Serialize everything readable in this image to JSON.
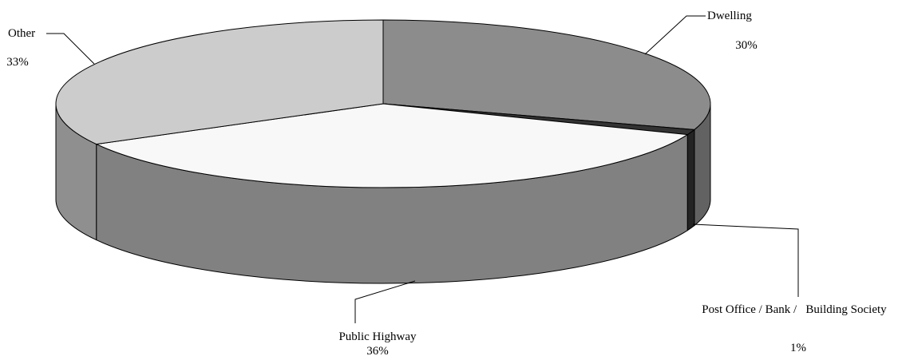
{
  "chart_data": {
    "type": "pie3d",
    "categories": [
      "Dwelling",
      "Post Office / Bank /   Building Society",
      "Public Highway",
      "Other"
    ],
    "values": [
      30,
      1,
      36,
      33
    ],
    "value_labels": [
      "30%",
      "1%",
      "36%",
      "33%"
    ],
    "colors": [
      "#8c8c8c",
      "#333333",
      "#f8f8f8",
      "#cccccc"
    ]
  }
}
